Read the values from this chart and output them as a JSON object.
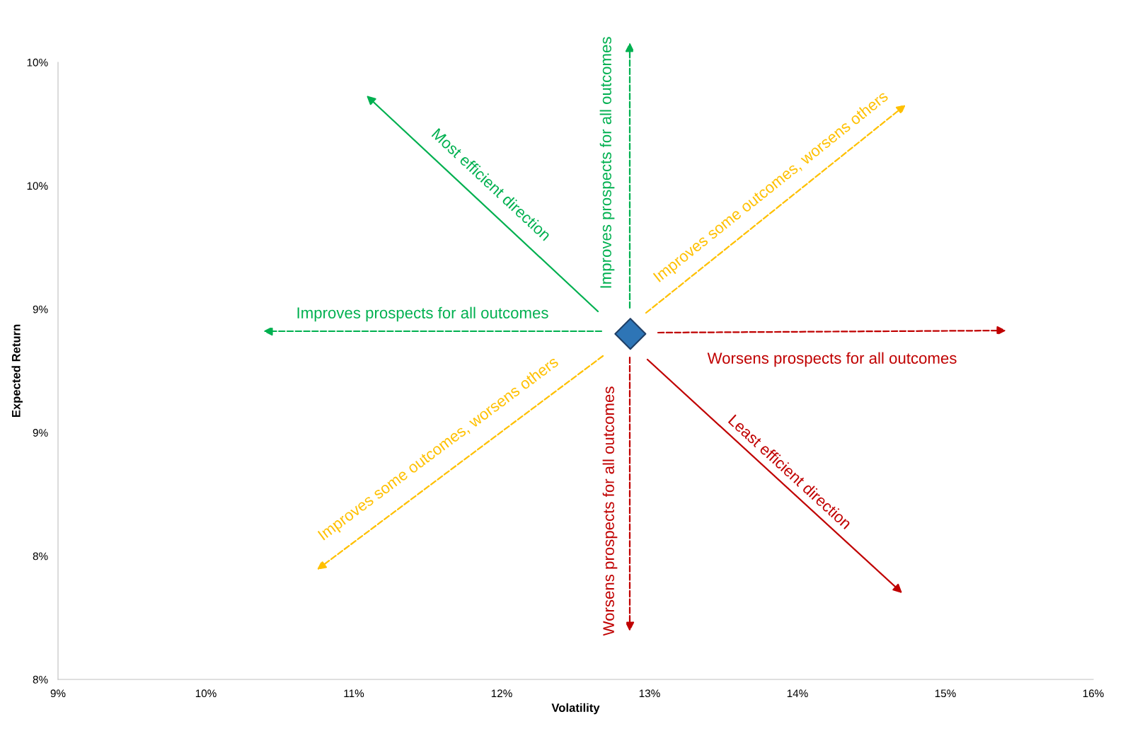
{
  "chart_data": {
    "type": "scatter",
    "xlabel": "Volatility",
    "ylabel": "Expected Return",
    "x": [
      12.87
    ],
    "values": [
      8.9
    ],
    "color": "#2e75b6",
    "marker": "diamond",
    "xlim": [
      9,
      16
    ],
    "ylim": [
      7.5,
      10.0
    ],
    "xticks": [
      {
        "value": 9,
        "label": "9%"
      },
      {
        "value": 10,
        "label": "10%"
      },
      {
        "value": 11,
        "label": "11%"
      },
      {
        "value": 12,
        "label": "12%"
      },
      {
        "value": 13,
        "label": "13%"
      },
      {
        "value": 14,
        "label": "14%"
      },
      {
        "value": 15,
        "label": "15%"
      },
      {
        "value": 16,
        "label": "16%"
      }
    ],
    "yticks": [
      {
        "value": 7.5,
        "label": "8%"
      },
      {
        "value": 8.0,
        "label": "8%"
      },
      {
        "value": 8.5,
        "label": "9%"
      },
      {
        "value": 9.0,
        "label": "9%"
      },
      {
        "value": 9.5,
        "label": "10%"
      },
      {
        "value": 10.0,
        "label": "10%"
      }
    ],
    "grid": false,
    "annotations": [
      "Most efficient direction",
      "Improves prospects for all outcomes",
      "Improves some outcomes, worsens others",
      "Improves prospects for all outcomes",
      "Worsens prospects for all outcomes",
      "Improves some outcomes, worsens others",
      "Worsens prospects for all outcomes",
      "Least efficient direction"
    ]
  }
}
